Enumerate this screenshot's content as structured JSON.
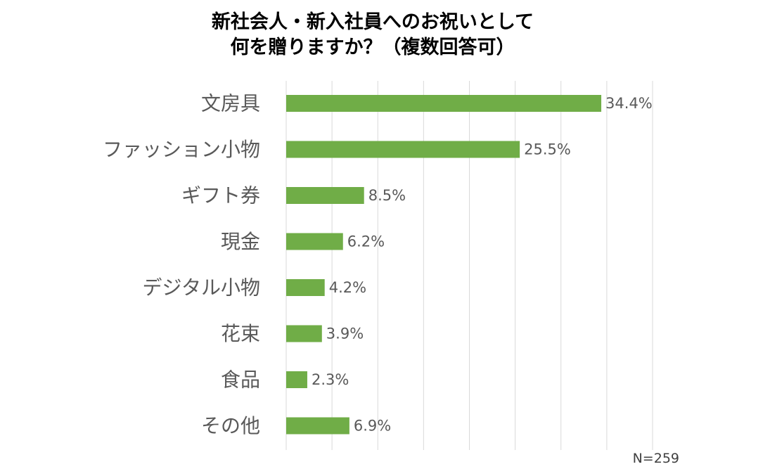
{
  "chart_data": {
    "type": "bar",
    "orientation": "horizontal",
    "title": [
      "新社会人・新入社員へのお祝いとして",
      "何を贈りますか？（複数回答可）"
    ],
    "categories": [
      "文房具",
      "ファッション小物",
      "ギフト券",
      "現金",
      "デジタル小物",
      "花束",
      "食品",
      "その他"
    ],
    "values": [
      34.4,
      25.5,
      8.5,
      6.2,
      4.2,
      3.9,
      2.3,
      6.9
    ],
    "value_labels": [
      "34.4%",
      "25.5%",
      "8.5%",
      "6.2%",
      "4.2%",
      "3.9%",
      "2.3%",
      "6.9%"
    ],
    "xlim": [
      0,
      40
    ],
    "x_grid_step": 5,
    "grid": true,
    "note": "N=259",
    "bar_color": "#70ad47",
    "grid_color": "#d9d9d9",
    "label_color": "#595959"
  }
}
